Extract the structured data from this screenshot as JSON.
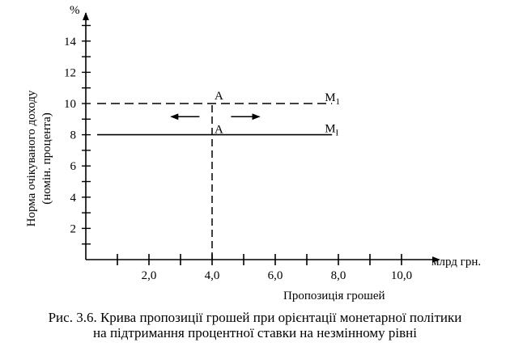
{
  "chart_data": {
    "type": "line",
    "y_unit": "%",
    "ylabel": "Норма очікуваного доходу",
    "ylabel_sub": "(номін. процента)",
    "xlabel": "Пропозиція грошей",
    "x_unit": "млрд грн.",
    "x_ticks": [
      2.0,
      4.0,
      6.0,
      8.0,
      10.0
    ],
    "x_tick_labels": [
      "2,0",
      "4,0",
      "6,0",
      "8,0",
      "10,0"
    ],
    "y_ticks": [
      2,
      4,
      6,
      8,
      10,
      12,
      14
    ],
    "y_tick_labels": [
      "2",
      "4",
      "6",
      "8",
      "10",
      "12",
      "14"
    ],
    "xlim": [
      0,
      11.2
    ],
    "ylim": [
      0,
      15.8
    ],
    "series": [
      {
        "name": "M1",
        "label": "M",
        "label_sub": "I",
        "style": "solid",
        "x": [
          0,
          7.8
        ],
        "y": [
          8,
          8
        ]
      },
      {
        "name": "M1'",
        "label": "M",
        "label_sub": "1",
        "style": "dashed",
        "x": [
          0,
          7.8
        ],
        "y": [
          10,
          10
        ]
      }
    ],
    "guides": [
      {
        "style": "dashed",
        "x": [
          4.0,
          4.0
        ],
        "y": [
          0,
          10
        ]
      }
    ],
    "points": [
      {
        "label": "A",
        "x": 4.0,
        "y": 10
      },
      {
        "label": "A",
        "x": 4.0,
        "y": 8
      }
    ],
    "arrows": [
      {
        "direction": "left",
        "y": 9
      },
      {
        "direction": "right",
        "y": 9
      }
    ]
  },
  "caption": {
    "line1": "Рис. 3.6. Крива пропозиції грошей при орієнтації монетарної політики",
    "line2": "на підтримання процентної ставки на незмінному рівні"
  }
}
